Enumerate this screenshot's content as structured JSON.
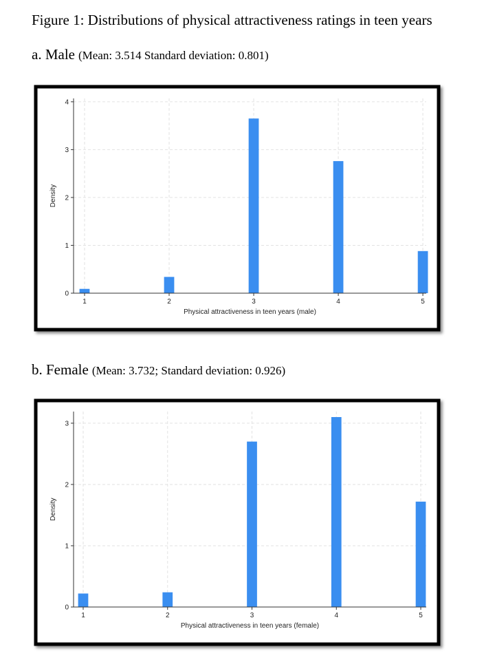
{
  "figure_title": "Figure 1: Distributions of physical attractiveness ratings in teen years",
  "chart_data": [
    {
      "type": "bar",
      "title": "a. Male",
      "subtitle": "(Mean: 3.514 Standard deviation: 0.801)",
      "x_label": "Physical attractiveness in teen years (male)",
      "y_label": "Density",
      "x": [
        1,
        2,
        3,
        4,
        5
      ],
      "values": [
        0.09,
        0.34,
        3.65,
        2.76,
        0.88
      ],
      "color": "#3a8ef0",
      "xlim": [
        0.87,
        5.04
      ],
      "xticks": [
        1,
        2,
        3,
        4,
        5
      ],
      "ylim": [
        0,
        4.07
      ],
      "yticks": [
        0,
        1,
        2,
        3,
        4
      ],
      "grid": true
    },
    {
      "type": "bar",
      "title": "b. Female",
      "subtitle": "(Mean: 3.732; Standard deviation: 0.926)",
      "x_label": "Physical attractiveness in teen years (female)",
      "y_label": "Density",
      "x": [
        1,
        2,
        3,
        4,
        5
      ],
      "values": [
        0.22,
        0.24,
        2.7,
        3.1,
        1.72
      ],
      "color": "#3a8ef0",
      "xlim": [
        0.886,
        5.065
      ],
      "xticks": [
        1,
        2,
        3,
        4,
        5
      ],
      "ylim": [
        0,
        3.19
      ],
      "yticks": [
        0,
        1,
        2,
        3
      ],
      "grid": true
    }
  ]
}
